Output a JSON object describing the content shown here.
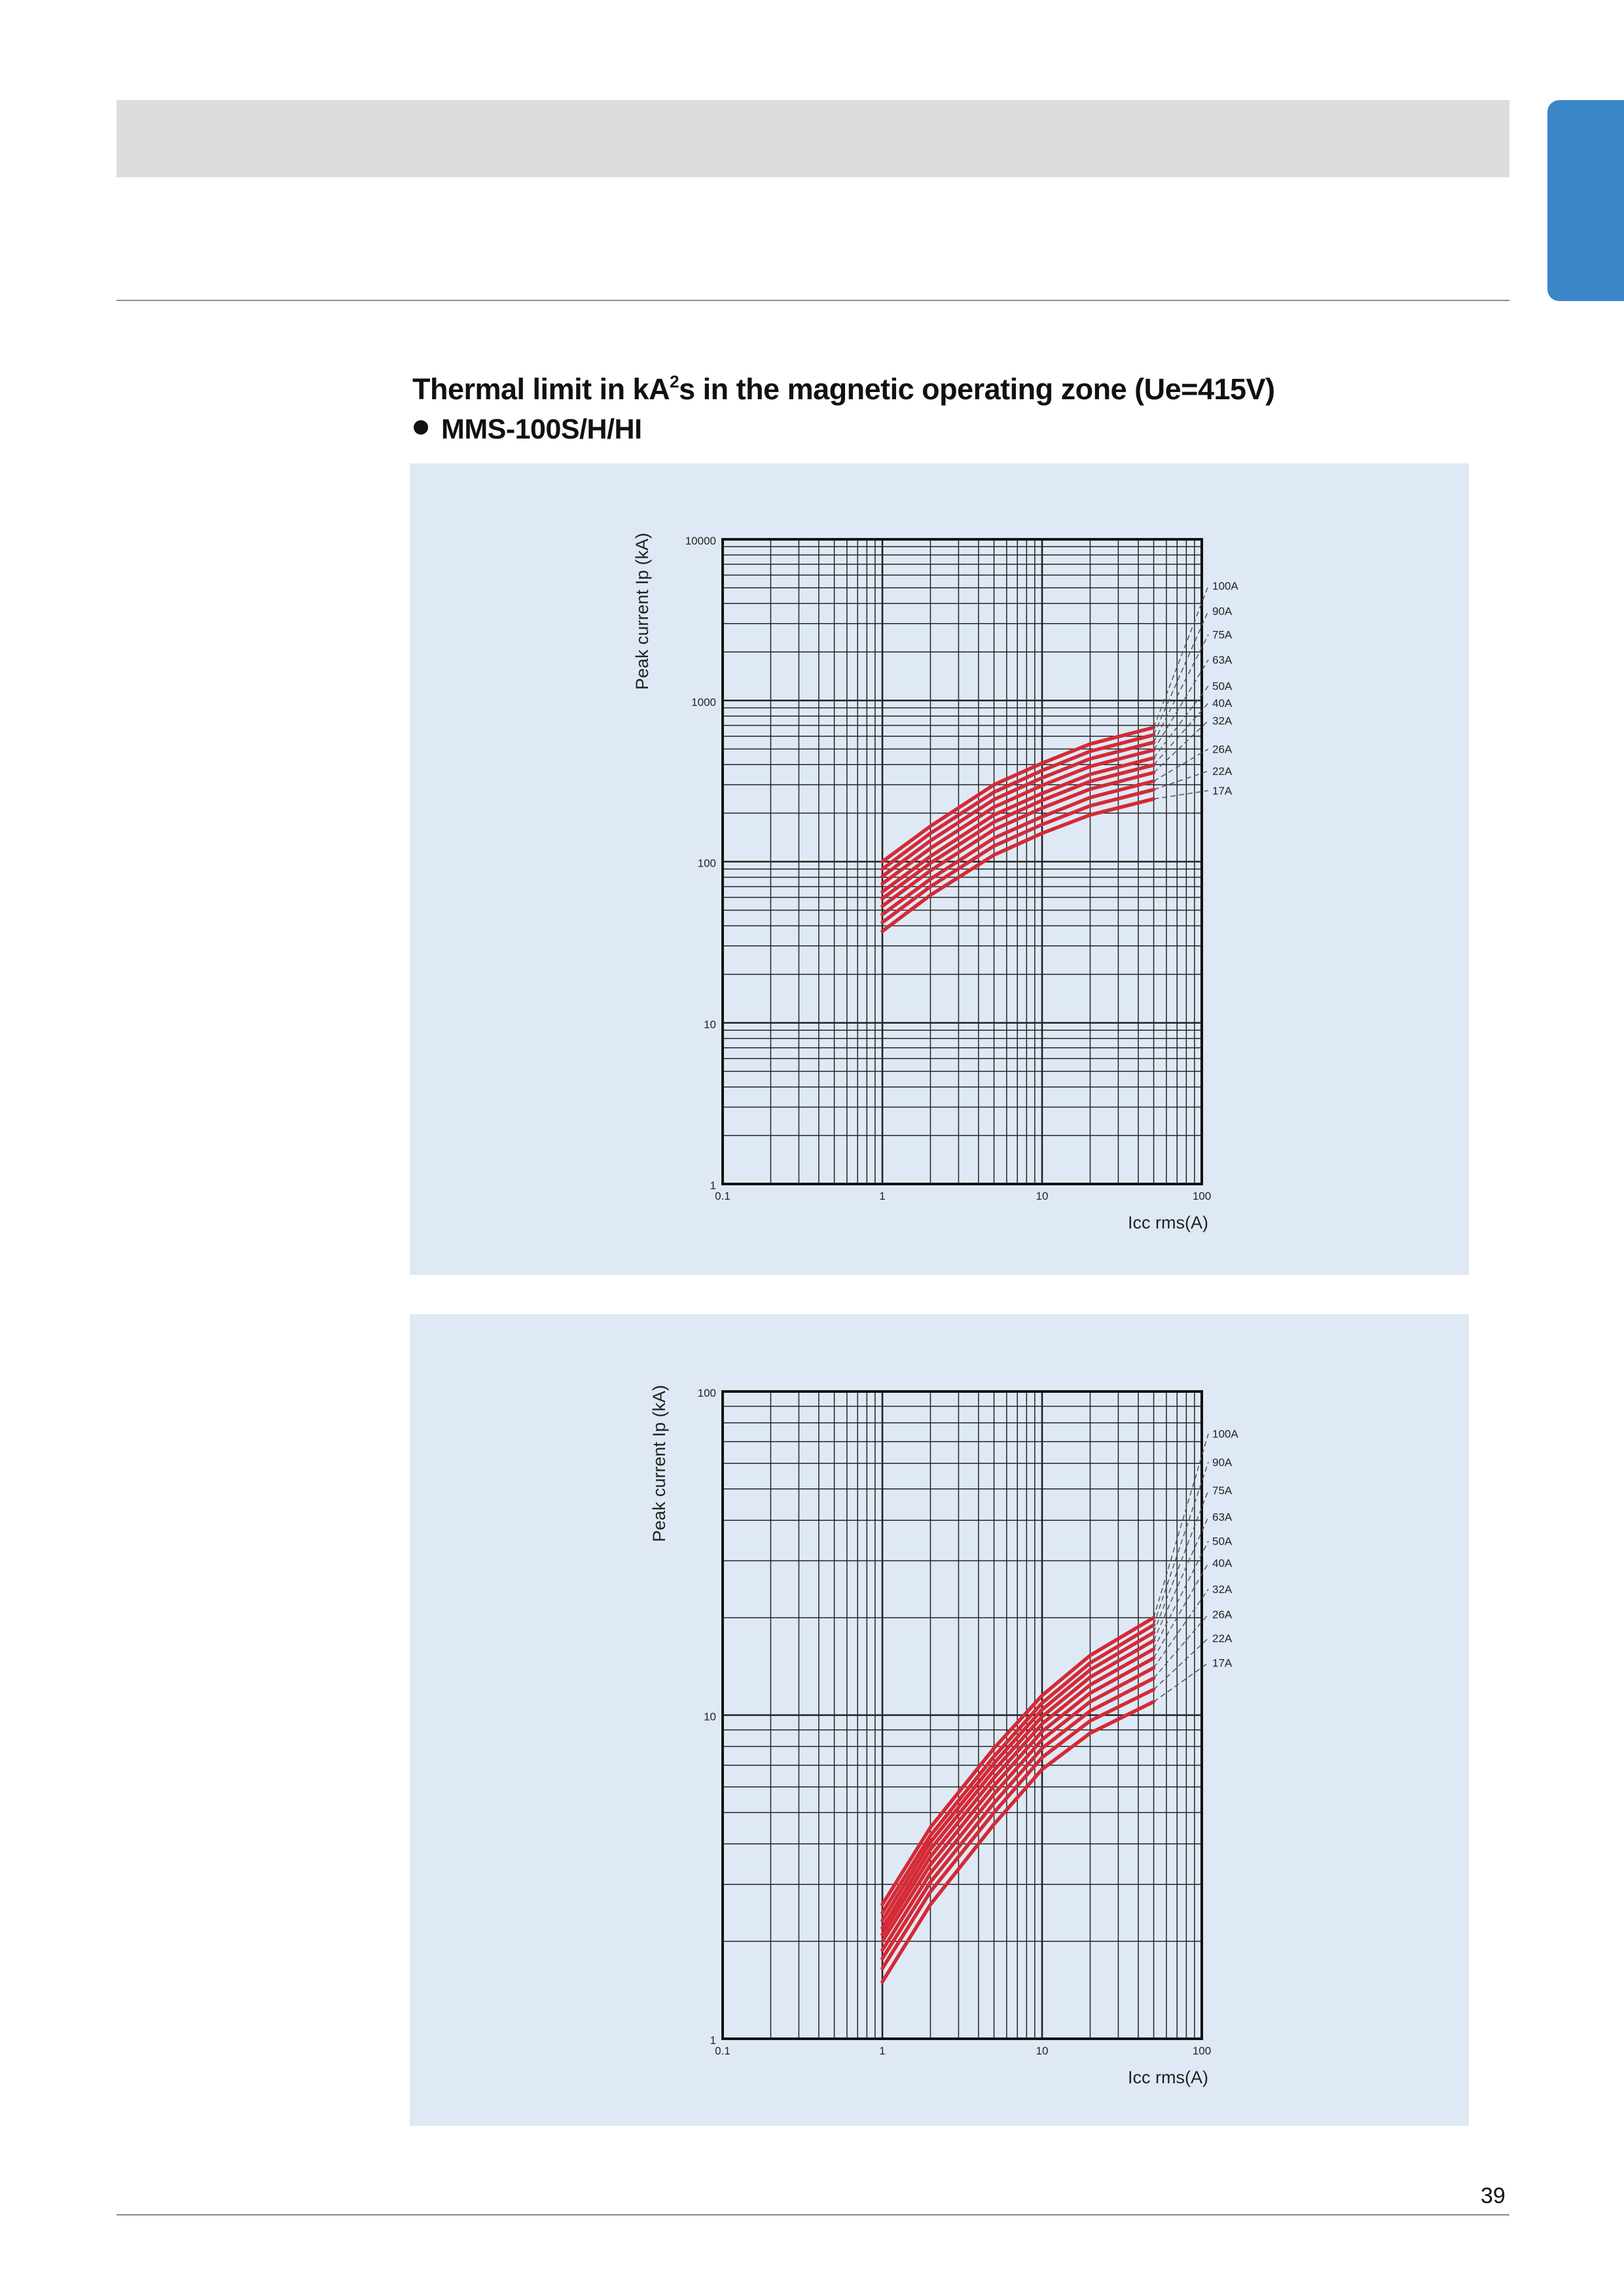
{
  "page": {
    "title_main": "Thermal limit in kA",
    "title_sup": "2",
    "title_rest": "s in the magnetic operating zone (Ue=415V)",
    "subtitle": "MMS-100S/H/HI",
    "page_number": "39"
  },
  "colors": {
    "curve": "#d42a36",
    "panel": "#dfe9f5",
    "grid": "#222222",
    "dashed": "#555555",
    "side_tab": "#3b86c8"
  },
  "chart_data": [
    {
      "type": "line",
      "x_scale": "log",
      "y_scale": "log",
      "xlabel": "Icc rms(A)",
      "ylabel": "Peak current Ip (kA)",
      "xlim": [
        0.1,
        100
      ],
      "ylim": [
        1,
        10000
      ],
      "x_ticks": [
        "0.1",
        "1",
        "10",
        "100"
      ],
      "y_ticks": [
        "1",
        "10",
        "100",
        "1000",
        "10000"
      ],
      "grid": true,
      "x": [
        1,
        2,
        5,
        10,
        20,
        50
      ],
      "series": [
        {
          "name": "17A",
          "values": [
            37,
            62,
            110,
            150,
            195,
            245
          ],
          "label_at": 276
        },
        {
          "name": "22A",
          "values": [
            42,
            70,
            125,
            170,
            222,
            280
          ],
          "label_at": 365
        },
        {
          "name": "26A",
          "values": [
            47,
            78,
            140,
            190,
            250,
            316
          ],
          "label_at": 500
        },
        {
          "name": "32A",
          "values": [
            53,
            88,
            158,
            215,
            282,
            357
          ],
          "label_at": 750
        },
        {
          "name": "40A",
          "values": [
            59,
            98,
            176,
            240,
            315,
            398
          ],
          "label_at": 965
        },
        {
          "name": "50A",
          "values": [
            65,
            108,
            195,
            265,
            348,
            440
          ],
          "label_at": 1230
        },
        {
          "name": "63A",
          "values": [
            73,
            121,
            218,
            297,
            390,
            493
          ],
          "label_at": 1790
        },
        {
          "name": "75A",
          "values": [
            81,
            135,
            243,
            331,
            435,
            550
          ],
          "label_at": 2560
        },
        {
          "name": "90A",
          "values": [
            90,
            150,
            270,
            368,
            484,
            612
          ],
          "label_at": 3600
        },
        {
          "name": "100A",
          "values": [
            100,
            166,
            300,
            408,
            537,
            680
          ],
          "label_at": 5150
        }
      ]
    },
    {
      "type": "line",
      "x_scale": "log",
      "y_scale": "log",
      "xlabel": "Icc rms(A)",
      "ylabel": "Peak current Ip (kA)",
      "xlim": [
        0.1,
        100
      ],
      "ylim": [
        1,
        100
      ],
      "x_ticks": [
        "0.1",
        "1",
        "10",
        "100"
      ],
      "y_ticks": [
        "1",
        "10",
        "100"
      ],
      "grid": true,
      "x": [
        1,
        2,
        5,
        10,
        20,
        50
      ],
      "series": [
        {
          "name": "17A",
          "values": [
            1.5,
            2.6,
            4.6,
            6.8,
            8.8,
            11
          ],
          "label_at": 14.5
        },
        {
          "name": "22A",
          "values": [
            1.65,
            2.85,
            5.0,
            7.4,
            9.6,
            12
          ],
          "label_at": 17.3
        },
        {
          "name": "26A",
          "values": [
            1.77,
            3.05,
            5.35,
            7.9,
            10.3,
            13
          ],
          "label_at": 20.5
        },
        {
          "name": "32A",
          "values": [
            1.88,
            3.25,
            5.7,
            8.4,
            11.0,
            14
          ],
          "label_at": 24.5
        },
        {
          "name": "40A",
          "values": [
            2.0,
            3.45,
            6.05,
            8.9,
            11.7,
            15
          ],
          "label_at": 29.5
        },
        {
          "name": "50A",
          "values": [
            2.1,
            3.65,
            6.4,
            9.4,
            12.4,
            16
          ],
          "label_at": 34.5
        },
        {
          "name": "63A",
          "values": [
            2.2,
            3.85,
            6.75,
            9.9,
            13.1,
            17
          ],
          "label_at": 41.0
        },
        {
          "name": "75A",
          "values": [
            2.32,
            4.05,
            7.1,
            10.4,
            13.8,
            18
          ],
          "label_at": 49.5
        },
        {
          "name": "90A",
          "values": [
            2.45,
            4.25,
            7.45,
            10.9,
            14.5,
            19
          ],
          "label_at": 60.5
        },
        {
          "name": "100A",
          "values": [
            2.6,
            4.5,
            7.9,
            11.5,
            15.3,
            20
          ],
          "label_at": 74.0
        }
      ]
    }
  ]
}
